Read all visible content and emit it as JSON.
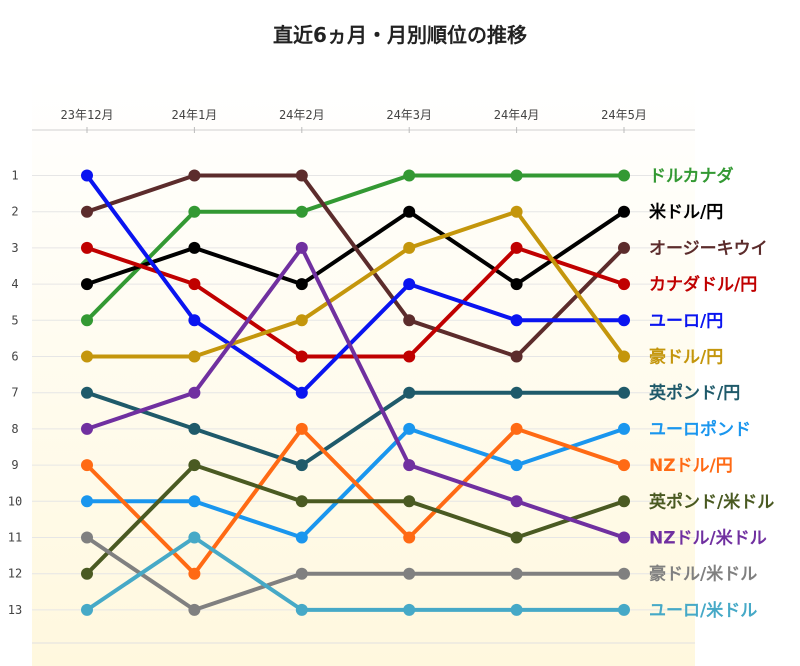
{
  "chart_data": {
    "type": "line",
    "title": "直近6ヵ月・月別順位の推移",
    "categories": [
      "23年12月",
      "24年1月",
      "24年2月",
      "24年3月",
      "24年4月",
      "24年5月"
    ],
    "y_ticks": [
      "1",
      "2",
      "3",
      "4",
      "5",
      "6",
      "7",
      "8",
      "9",
      "10",
      "11",
      "12",
      "13"
    ],
    "ylim": [
      1,
      13
    ],
    "y_inverted": true,
    "grid": "horizontal",
    "legend_placement": "right, labels at line ends",
    "series": [
      {
        "name": "ドルカナダ",
        "color": "#339933",
        "values": [
          5,
          2,
          2,
          1,
          1,
          1
        ]
      },
      {
        "name": "米ドル/円",
        "color": "#000000",
        "values": [
          4,
          3,
          4,
          2,
          4,
          2
        ]
      },
      {
        "name": "オージーキウイ",
        "color": "#5c2c2c",
        "values": [
          2,
          1,
          1,
          5,
          6,
          3
        ]
      },
      {
        "name": "カナダドル/円",
        "color": "#c00000",
        "values": [
          3,
          4,
          6,
          6,
          3,
          4
        ]
      },
      {
        "name": "ユーロ/円",
        "color": "#0a14f0",
        "values": [
          1,
          5,
          7,
          4,
          5,
          5
        ]
      },
      {
        "name": "豪ドル/円",
        "color": "#c4960c",
        "values": [
          6,
          6,
          5,
          3,
          2,
          6
        ]
      },
      {
        "name": "英ポンド/円",
        "color": "#1f5a6a",
        "values": [
          7,
          8,
          9,
          7,
          7,
          7
        ]
      },
      {
        "name": "ユーロポンド",
        "color": "#1a96ee",
        "values": [
          10,
          10,
          11,
          8,
          9,
          8
        ]
      },
      {
        "name": "NZドル/円",
        "color": "#ff6a14",
        "values": [
          9,
          12,
          8,
          11,
          8,
          9
        ]
      },
      {
        "name": "英ポンド/米ドル",
        "color": "#4a5a22",
        "values": [
          12,
          9,
          10,
          10,
          11,
          10
        ]
      },
      {
        "name": "NZドル/米ドル",
        "color": "#7030a0",
        "values": [
          8,
          7,
          3,
          9,
          10,
          11
        ]
      },
      {
        "name": "豪ドル/米ドル",
        "color": "#808080",
        "values": [
          11,
          13,
          12,
          12,
          12,
          12
        ]
      },
      {
        "name": "ユーロ/米ドル",
        "color": "#46a9c7",
        "values": [
          13,
          11,
          13,
          13,
          13,
          13
        ]
      }
    ]
  }
}
